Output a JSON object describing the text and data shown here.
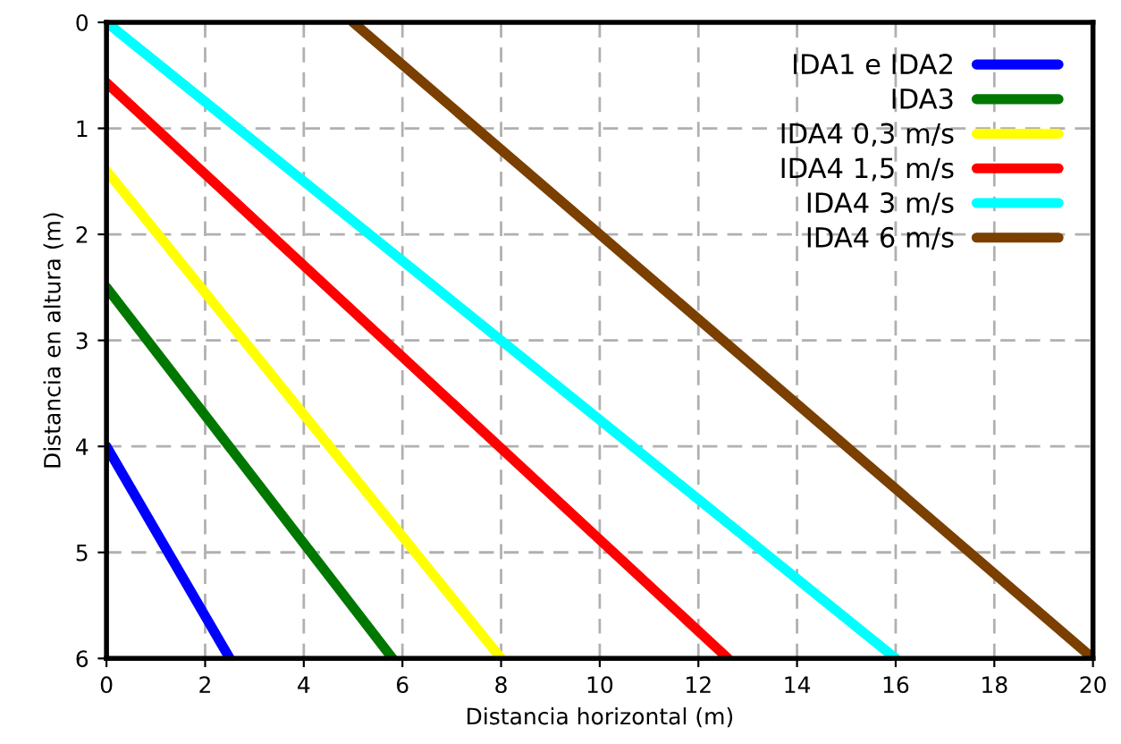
{
  "chart_data": {
    "type": "line",
    "xlabel": "Distancia horizontal (m)",
    "ylabel": "Distancia en altura (m)",
    "xlim": [
      0,
      20
    ],
    "ylim": [
      6,
      0
    ],
    "xticks": [
      0,
      2,
      4,
      6,
      8,
      10,
      12,
      14,
      16,
      18,
      20
    ],
    "yticks": [
      0,
      1,
      2,
      3,
      4,
      5,
      6
    ],
    "grid": true,
    "legend": "top right",
    "line_style": "solid",
    "marker": "none",
    "series": [
      {
        "name": "IDA1 e IDA2",
        "color": "#0000ff",
        "x": [
          0,
          2.5
        ],
        "values": [
          4,
          6
        ]
      },
      {
        "name": "IDA3",
        "color": "#007800",
        "x": [
          0,
          5.8
        ],
        "values": [
          2.5,
          6
        ]
      },
      {
        "name": "IDA4 0,3 m/s",
        "color": "#ffff00",
        "x": [
          0,
          8
        ],
        "values": [
          1.4,
          6
        ]
      },
      {
        "name": "IDA4 1,5 m/s",
        "color": "#ff0000",
        "x": [
          0,
          12.6
        ],
        "values": [
          0.57,
          6
        ]
      },
      {
        "name": "IDA4 3 m/s",
        "color": "#00ffff",
        "x": [
          0,
          16
        ],
        "values": [
          0,
          6
        ]
      },
      {
        "name": "IDA4 6 m/s",
        "color": "#7b3f00",
        "x": [
          5,
          20
        ],
        "values": [
          0,
          6
        ]
      }
    ]
  }
}
